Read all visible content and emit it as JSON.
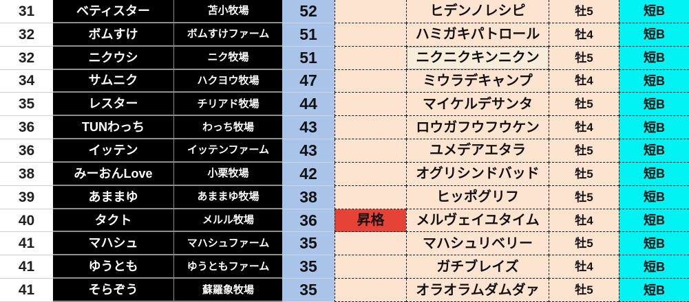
{
  "colors": {
    "dark_column_bg": "#000000",
    "score_column_bg": "#a9c3e9",
    "cream_column_bg": "#fce4d0",
    "class_column_bg": "#00f2f2",
    "promotion_bg": "#e74236",
    "selected_cell_bg": "#f8ecdb"
  },
  "table": {
    "rows": [
      {
        "rank": "31",
        "owner": "ベティスター",
        "stable": "苫小牧場",
        "score": "52",
        "promotion": "",
        "horse": "ヒデンノレシピ",
        "sex_age": "牡5",
        "grade": "短B",
        "selected": false,
        "promoted": false
      },
      {
        "rank": "32",
        "owner": "ボムすけ",
        "stable": "ボムすけファーム",
        "score": "51",
        "promotion": "",
        "horse": "ハミガキパトロール",
        "sex_age": "牡4",
        "grade": "短B",
        "selected": false,
        "promoted": false
      },
      {
        "rank": "32",
        "owner": "ニクウシ",
        "stable": "ニク牧場",
        "score": "51",
        "promotion": "",
        "horse": "ニクニクキンニクン",
        "sex_age": "牡5",
        "grade": "短B",
        "selected": true,
        "promoted": false
      },
      {
        "rank": "34",
        "owner": "サムニク",
        "stable": "ハクヨウ牧場",
        "score": "47",
        "promotion": "",
        "horse": "ミウラデキャンプ",
        "sex_age": "牡4",
        "grade": "短B",
        "selected": false,
        "promoted": false
      },
      {
        "rank": "35",
        "owner": "レスター",
        "stable": "チリアド牧場",
        "score": "44",
        "promotion": "",
        "horse": "マイケルデサンタ",
        "sex_age": "牡5",
        "grade": "短B",
        "selected": false,
        "promoted": false
      },
      {
        "rank": "36",
        "owner": "TUNわっち",
        "stable": "わっち牧場",
        "score": "43",
        "promotion": "",
        "horse": "ロウガフウフウケン",
        "sex_age": "牡4",
        "grade": "短B",
        "selected": false,
        "promoted": false
      },
      {
        "rank": "36",
        "owner": "イッテン",
        "stable": "イッテンファーム",
        "score": "43",
        "promotion": "",
        "horse": "ユメデアエタラ",
        "sex_age": "牡5",
        "grade": "短B",
        "selected": false,
        "promoted": false
      },
      {
        "rank": "38",
        "owner": "みーおんLove",
        "stable": "小栗牧場",
        "score": "42",
        "promotion": "",
        "horse": "オグリシンドバッド",
        "sex_age": "牡5",
        "grade": "短B",
        "selected": false,
        "promoted": false
      },
      {
        "rank": "39",
        "owner": "あままゆ",
        "stable": "あままゆ牧場",
        "score": "38",
        "promotion": "",
        "horse": "ヒッポグリフ",
        "sex_age": "牡5",
        "grade": "短B",
        "selected": false,
        "promoted": false
      },
      {
        "rank": "40",
        "owner": "タクト",
        "stable": "メルル牧場",
        "score": "36",
        "promotion": "昇格",
        "horse": "メルヴェイユタイム",
        "sex_age": "牡4",
        "grade": "短B",
        "selected": false,
        "promoted": true
      },
      {
        "rank": "41",
        "owner": "マハシュ",
        "stable": "マハシュファーム",
        "score": "35",
        "promotion": "",
        "horse": "マハシュリベリー",
        "sex_age": "牡5",
        "grade": "短B",
        "selected": false,
        "promoted": false
      },
      {
        "rank": "41",
        "owner": "ゆうとも",
        "stable": "ゆうともファーム",
        "score": "35",
        "promotion": "",
        "horse": "ガチブレイズ",
        "sex_age": "牡4",
        "grade": "短B",
        "selected": false,
        "promoted": false
      },
      {
        "rank": "41",
        "owner": "そらぞう",
        "stable": "蘇羅象牧場",
        "score": "35",
        "promotion": "",
        "horse": "オラオラムダムダァ",
        "sex_age": "牡5",
        "grade": "短B",
        "selected": false,
        "promoted": false
      }
    ]
  }
}
